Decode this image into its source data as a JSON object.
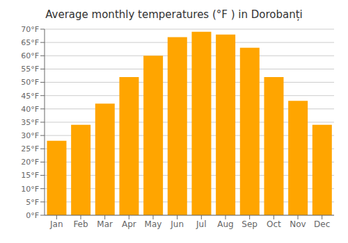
{
  "chart_data": {
    "type": "bar",
    "title": "Average monthly temperatures (°F ) in Dorobanți",
    "categories": [
      "Jan",
      "Feb",
      "Mar",
      "Apr",
      "May",
      "Jun",
      "Jul",
      "Aug",
      "Sep",
      "Oct",
      "Nov",
      "Dec"
    ],
    "values": [
      28,
      34,
      42,
      52,
      60,
      67,
      69,
      68,
      63,
      52,
      43,
      34
    ],
    "color": "#FFA500",
    "ylim": [
      0,
      70
    ],
    "yticks": [
      {
        "value": 0,
        "label": "0°F"
      },
      {
        "value": 5,
        "label": "5°F"
      },
      {
        "value": 10,
        "label": "10°F"
      },
      {
        "value": 15,
        "label": "15°F"
      },
      {
        "value": 20,
        "label": "20°F"
      },
      {
        "value": 25,
        "label": "25°F"
      },
      {
        "value": 30,
        "label": "30°F"
      },
      {
        "value": 35,
        "label": "35°F"
      },
      {
        "value": 40,
        "label": "40°F"
      },
      {
        "value": 45,
        "label": "45°F"
      },
      {
        "value": 50,
        "label": "50°F"
      },
      {
        "value": 55,
        "label": "55°F"
      },
      {
        "value": 60,
        "label": "60°F"
      },
      {
        "value": 65,
        "label": "65°F"
      },
      {
        "value": 70,
        "label": "70°F"
      }
    ],
    "grid": true
  }
}
